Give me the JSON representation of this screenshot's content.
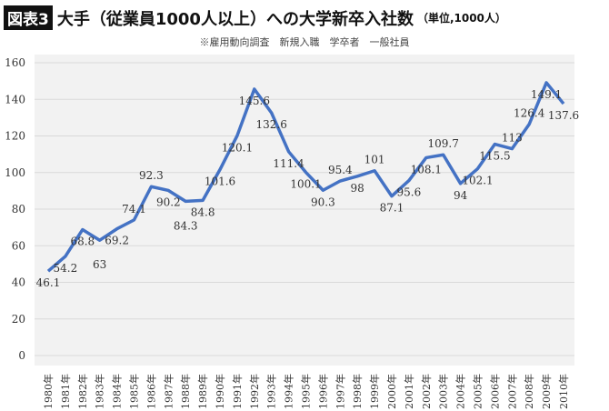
{
  "title": {
    "badge": "図表3",
    "main": "大手（従業員1000人以上）への大学新卒入社数",
    "unit": "（単位,1000人）"
  },
  "subtitle": "※雇用動向調査　新規入職　学卒者　一般社員",
  "chart_data": {
    "type": "line",
    "categories": [
      "1980年",
      "1981年",
      "1982年",
      "1983年",
      "1984年",
      "1985年",
      "1986年",
      "1987年",
      "1988年",
      "1989年",
      "1990年",
      "1991年",
      "1992年",
      "1993年",
      "1994年",
      "1995年",
      "1996年",
      "1997年",
      "1998年",
      "1999年",
      "2000年",
      "2001年",
      "2002年",
      "2003年",
      "2004年",
      "2005年",
      "2006年",
      "2007年",
      "2008年",
      "2009年",
      "2010年"
    ],
    "values": [
      46.1,
      54.2,
      68.8,
      63,
      69.2,
      74.1,
      92.3,
      90.2,
      84.3,
      84.8,
      101.6,
      120.1,
      145.6,
      132.6,
      111.4,
      100.1,
      90.3,
      95.4,
      98,
      101,
      87.1,
      95.6,
      108.1,
      109.7,
      94,
      102.1,
      115.5,
      113,
      126.4,
      149.1,
      137.6
    ],
    "data_labels": [
      "46.1",
      "54.2",
      "68.8",
      "63",
      "69.2",
      "74.1",
      "92.3",
      "90.2",
      "84.3",
      "84.8",
      "101.6",
      "120.1",
      "145.6",
      "132.6",
      "111.4",
      "100.1",
      "90.3",
      "95.4",
      "98",
      "101",
      "87.1",
      "95.6",
      "108.1",
      "109.7",
      "94",
      "102.1",
      "115.5",
      "113",
      "126.4",
      "149.1",
      "137.6"
    ],
    "yticks": [
      "0",
      "20",
      "40",
      "60",
      "80",
      "100",
      "120",
      "140",
      "160"
    ],
    "ylim": [
      0,
      160
    ],
    "grid": true,
    "line_color": "#4472c4",
    "plot_background": "#f2f2f2"
  }
}
